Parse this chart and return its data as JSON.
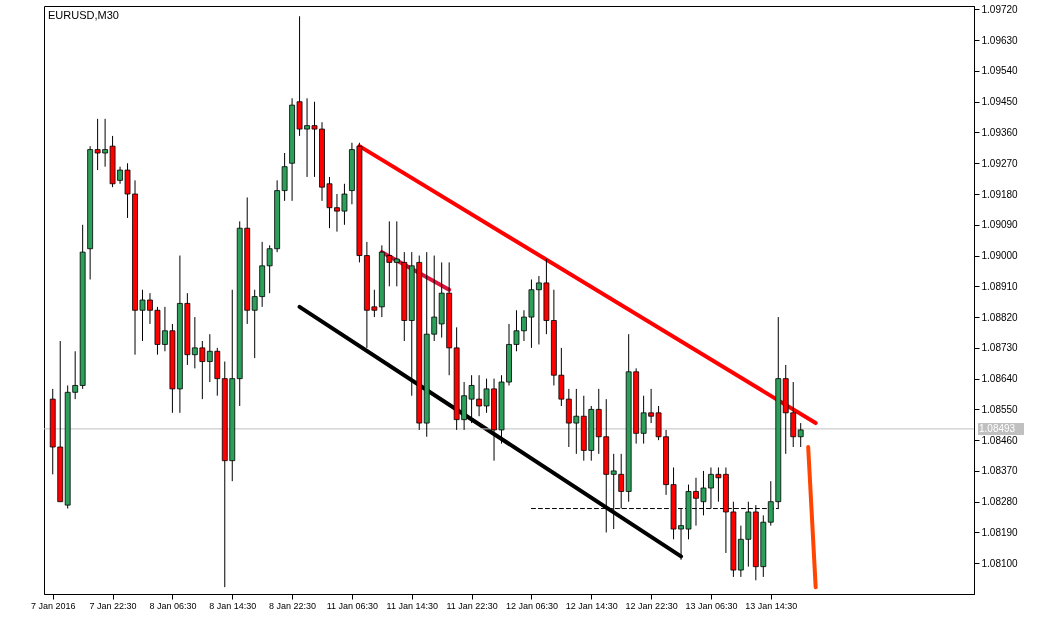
{
  "chart_data": {
    "type": "candlestick",
    "title": "EURUSD,M30",
    "categories": [
      "7 Jan 2016",
      null,
      null,
      null,
      null,
      null,
      null,
      null,
      "7 Jan 22:30",
      null,
      null,
      null,
      null,
      null,
      null,
      null,
      "8 Jan 06:30",
      null,
      null,
      null,
      null,
      null,
      null,
      null,
      "8 Jan 14:30",
      null,
      null,
      null,
      null,
      null,
      null,
      null,
      "8 Jan 22:30",
      null,
      null,
      null,
      null,
      null,
      null,
      null,
      "11 Jan 06:30",
      null,
      null,
      null,
      null,
      null,
      null,
      null,
      "11 Jan 14:30",
      null,
      null,
      null,
      null,
      null,
      null,
      null,
      "11 Jan 22:30",
      null,
      null,
      null,
      null,
      null,
      null,
      null,
      "12 Jan 06:30",
      null,
      null,
      null,
      null,
      null,
      null,
      null,
      "12 Jan 14:30",
      null,
      null,
      null,
      null,
      null,
      null,
      null,
      "12 Jan 22:30",
      null,
      null,
      null,
      null,
      null,
      null,
      null,
      "13 Jan 06:30",
      null,
      null,
      null,
      null,
      null,
      null,
      null,
      "13 Jan 14:30",
      null,
      null,
      null,
      null,
      null,
      null,
      null,
      null,
      null,
      null,
      null,
      null,
      null,
      null,
      null,
      null,
      null,
      null,
      null,
      null,
      null,
      null,
      null,
      null,
      null,
      null
    ],
    "ohlc": [
      [
        1.0858,
        1.0861,
        1.0836,
        1.0844
      ],
      [
        1.0844,
        1.0875,
        1.0828,
        1.0828
      ],
      [
        1.0827,
        1.0862,
        1.0826,
        1.086
      ],
      [
        1.086,
        1.0872,
        1.0858,
        1.0862
      ],
      [
        1.0862,
        1.0909,
        1.0861,
        1.0901
      ],
      [
        1.0902,
        1.0932,
        1.0893,
        1.0931
      ],
      [
        1.0931,
        1.094,
        1.0925,
        1.093
      ],
      [
        1.093,
        1.094,
        1.0926,
        1.0931
      ],
      [
        1.0932,
        1.0935,
        1.092,
        1.0921
      ],
      [
        1.0922,
        1.0926,
        1.0921,
        1.0925
      ],
      [
        1.0925,
        1.0927,
        1.0911,
        1.0918
      ],
      [
        1.0918,
        1.0922,
        1.0871,
        1.0884
      ],
      [
        1.0884,
        1.089,
        1.0875,
        1.0887
      ],
      [
        1.0887,
        1.0889,
        1.088,
        1.0884
      ],
      [
        1.0884,
        1.0885,
        1.0871,
        1.0874
      ],
      [
        1.0874,
        1.0885,
        1.0872,
        1.0878
      ],
      [
        1.0878,
        1.088,
        1.0854,
        1.0861
      ],
      [
        1.0861,
        1.09,
        1.0854,
        1.0886
      ],
      [
        1.0886,
        1.0889,
        1.0868,
        1.0871
      ],
      [
        1.0871,
        1.0882,
        1.0867,
        1.0873
      ],
      [
        1.0873,
        1.0875,
        1.0858,
        1.0869
      ],
      [
        1.0869,
        1.0877,
        1.0863,
        1.0872
      ],
      [
        1.0872,
        1.0873,
        1.0859,
        1.0864
      ],
      [
        1.0864,
        1.0869,
        1.0803,
        1.084
      ],
      [
        1.084,
        1.089,
        1.0834,
        1.0864
      ],
      [
        1.0864,
        1.091,
        1.0856,
        1.0908
      ],
      [
        1.0908,
        1.0917,
        1.088,
        1.0884
      ],
      [
        1.0884,
        1.089,
        1.087,
        1.0888
      ],
      [
        1.0888,
        1.0904,
        1.0885,
        1.0897
      ],
      [
        1.0897,
        1.0903,
        1.0889,
        1.0902
      ],
      [
        1.0902,
        1.0922,
        1.0901,
        1.0919
      ],
      [
        1.0919,
        1.093,
        1.0916,
        1.0926
      ],
      [
        1.0927,
        1.0946,
        1.0916,
        1.0944
      ],
      [
        1.0945,
        1.097,
        1.0935,
        1.0937
      ],
      [
        1.0937,
        1.0946,
        1.0923,
        1.0938
      ],
      [
        1.0938,
        1.0945,
        1.0923,
        1.0937
      ],
      [
        1.0937,
        1.0939,
        1.0916,
        1.092
      ],
      [
        1.0921,
        1.0923,
        1.0908,
        1.0914
      ],
      [
        1.0914,
        1.0918,
        1.0907,
        1.0913
      ],
      [
        1.0913,
        1.0921,
        1.0909,
        1.0918
      ],
      [
        1.0919,
        1.0933,
        1.0915,
        1.0931
      ],
      [
        1.0932,
        1.0933,
        1.0898,
        1.09
      ],
      [
        1.09,
        1.0904,
        1.0873,
        1.0884
      ],
      [
        1.0885,
        1.089,
        1.0882,
        1.0884
      ],
      [
        1.0885,
        1.0903,
        1.0882,
        1.0901
      ],
      [
        1.09,
        1.091,
        1.0891,
        1.0898
      ],
      [
        1.0898,
        1.091,
        1.0891,
        1.0899
      ],
      [
        1.0898,
        1.0901,
        1.0875,
        1.0881
      ],
      [
        1.0881,
        1.0901,
        1.0859,
        1.0897
      ],
      [
        1.0898,
        1.09,
        1.0849,
        1.0851
      ],
      [
        1.0851,
        1.0901,
        1.0847,
        1.0877
      ],
      [
        1.0877,
        1.09,
        1.0875,
        1.0882
      ],
      [
        1.088,
        1.0898,
        1.0876,
        1.0889
      ],
      [
        1.0889,
        1.0898,
        1.0865,
        1.0873
      ],
      [
        1.0873,
        1.0879,
        1.0849,
        1.0852
      ],
      [
        1.0852,
        1.0863,
        1.0849,
        1.0859
      ],
      [
        1.0858,
        1.0865,
        1.0851,
        1.0862
      ],
      [
        1.0858,
        1.0865,
        1.0853,
        1.0856
      ],
      [
        1.0856,
        1.0864,
        1.0854,
        1.0861
      ],
      [
        1.0861,
        1.0864,
        1.084,
        1.0849
      ],
      [
        1.0849,
        1.0865,
        1.0845,
        1.0863
      ],
      [
        1.0863,
        1.088,
        1.0862,
        1.0874
      ],
      [
        1.0874,
        1.0884,
        1.0872,
        1.0878
      ],
      [
        1.0878,
        1.0884,
        1.0875,
        1.0882
      ],
      [
        1.0882,
        1.0893,
        1.0873,
        1.089
      ],
      [
        1.089,
        1.0894,
        1.0874,
        1.0892
      ],
      [
        1.0892,
        1.0899,
        1.0877,
        1.0881
      ],
      [
        1.0881,
        1.089,
        1.0862,
        1.0865
      ],
      [
        1.0865,
        1.0873,
        1.0856,
        1.0858
      ],
      [
        1.0858,
        1.0861,
        1.0844,
        1.0851
      ],
      [
        1.0851,
        1.0861,
        1.0842,
        1.0853
      ],
      [
        1.0853,
        1.0859,
        1.084,
        1.0843
      ],
      [
        1.0843,
        1.0856,
        1.084,
        1.0855
      ],
      [
        1.0855,
        1.0861,
        1.0842,
        1.0847
      ],
      [
        1.0847,
        1.0858,
        1.0819,
        1.0836
      ],
      [
        1.0836,
        1.0842,
        1.082,
        1.0837
      ],
      [
        1.0836,
        1.0842,
        1.0826,
        1.0831
      ],
      [
        1.0831,
        1.0877,
        1.0828,
        1.0866
      ],
      [
        1.0866,
        1.0867,
        1.0845,
        1.0848
      ],
      [
        1.0848,
        1.0859,
        1.0845,
        1.0854
      ],
      [
        1.0854,
        1.0861,
        1.0851,
        1.0853
      ],
      [
        1.0854,
        1.0856,
        1.0846,
        1.0847
      ],
      [
        1.0847,
        1.0849,
        1.083,
        1.0833
      ],
      [
        1.0833,
        1.0838,
        1.0817,
        1.082
      ],
      [
        1.082,
        1.0826,
        1.0811,
        1.0821
      ],
      [
        1.082,
        1.0833,
        1.0817,
        1.0831
      ],
      [
        1.0831,
        1.0835,
        1.0821,
        1.0829
      ],
      [
        1.0828,
        1.0837,
        1.0824,
        1.0832
      ],
      [
        1.0832,
        1.0838,
        1.0826,
        1.0836
      ],
      [
        1.0836,
        1.0838,
        1.0828,
        1.0835
      ],
      [
        1.0836,
        1.0838,
        1.0813,
        1.0825
      ],
      [
        1.0825,
        1.0828,
        1.0806,
        1.0808
      ],
      [
        1.0808,
        1.0821,
        1.0806,
        1.0817
      ],
      [
        1.0817,
        1.0828,
        1.0809,
        1.0825
      ],
      [
        1.0825,
        1.0827,
        1.0805,
        1.0809
      ],
      [
        1.0809,
        1.0824,
        1.0806,
        1.0822
      ],
      [
        1.0822,
        1.0834,
        1.0821,
        1.0828
      ],
      [
        1.0828,
        1.0882,
        1.0826,
        1.0864
      ],
      [
        1.0864,
        1.0868,
        1.0842,
        1.0854
      ],
      [
        1.0854,
        1.0863,
        1.0844,
        1.0847
      ],
      [
        1.0847,
        1.0851,
        1.0844,
        1.0849
      ],
      null,
      null,
      null,
      null,
      null,
      null,
      null,
      null,
      null,
      null,
      null,
      null,
      null,
      null,
      null,
      null,
      null,
      null,
      null,
      null,
      null,
      null
    ],
    "colors": [
      "#ff0000",
      "#ff0000",
      "#2ca05a",
      "#2ca05a",
      "#2ca05a",
      "#2ca05a",
      "#ff0000",
      "#2ca05a",
      "#ff0000",
      "#2ca05a",
      "#ff0000",
      "#ff0000",
      "#2ca05a",
      "#ff0000",
      "#ff0000",
      "#2ca05a",
      "#ff0000",
      "#2ca05a",
      "#ff0000",
      "#2ca05a",
      "#ff0000",
      "#2ca05a",
      "#ff0000",
      "#ff0000",
      "#2ca05a",
      "#2ca05a",
      "#ff0000",
      "#2ca05a",
      "#2ca05a",
      "#2ca05a",
      "#2ca05a",
      "#2ca05a",
      "#2ca05a",
      "#ff0000",
      "#2ca05a",
      "#ff0000",
      "#ff0000",
      "#ff0000",
      "#ff0000",
      "#2ca05a",
      "#2ca05a",
      "#ff0000",
      "#ff0000",
      "#ff0000",
      "#2ca05a",
      "#ff0000",
      "#2ca05a",
      "#ff0000",
      "#2ca05a",
      "#ff0000",
      "#2ca05a",
      "#2ca05a",
      "#2ca05a",
      "#ff0000",
      "#ff0000",
      "#2ca05a",
      "#2ca05a",
      "#ff0000",
      "#2ca05a",
      "#ff0000",
      "#2ca05a",
      "#2ca05a",
      "#2ca05a",
      "#2ca05a",
      "#2ca05a",
      "#2ca05a",
      "#ff0000",
      "#ff0000",
      "#ff0000",
      "#ff0000",
      "#2ca05a",
      "#ff0000",
      "#2ca05a",
      "#ff0000",
      "#ff0000",
      "#2ca05a",
      "#ff0000",
      "#2ca05a",
      "#ff0000",
      "#2ca05a",
      "#ff0000",
      "#ff0000",
      "#ff0000",
      "#ff0000",
      "#2ca05a",
      "#2ca05a",
      "#ff0000",
      "#2ca05a",
      "#2ca05a",
      "#ff0000",
      "#ff0000",
      "#ff0000",
      "#2ca05a",
      "#2ca05a",
      "#ff0000",
      "#2ca05a",
      "#2ca05a",
      "#2ca05a",
      "#ff0000",
      "#ff0000",
      "#2ca05a",
      null,
      null,
      null,
      null,
      null,
      null,
      null,
      null,
      null,
      null,
      null,
      null,
      null,
      null,
      null,
      null,
      null,
      null,
      null,
      null,
      null,
      null
    ],
    "series": [
      {
        "type": "line",
        "color": "#ff0000",
        "values": [
          null,
          null,
          null,
          null,
          null,
          null,
          null,
          null,
          null,
          null,
          null,
          null,
          null,
          null,
          null,
          null,
          null,
          null,
          null,
          null,
          null,
          null,
          null,
          null,
          null,
          null,
          null,
          null,
          null,
          null,
          null,
          null,
          null,
          null,
          null,
          null,
          null,
          null,
          null,
          null,
          null,
          1.0932,
          null,
          null,
          null,
          null,
          null,
          null,
          null,
          null,
          null,
          null,
          null,
          null,
          null,
          null,
          null,
          null,
          null,
          null,
          null,
          null,
          null,
          null,
          null,
          null,
          null,
          null,
          null,
          null,
          null,
          null,
          null,
          null,
          null,
          null,
          null,
          null,
          null,
          null,
          null,
          null,
          null,
          null,
          null,
          null,
          null,
          null,
          null,
          null,
          null,
          null,
          null,
          null,
          null,
          null,
          null,
          null,
          null,
          null,
          null,
          null,
          1.0851,
          null,
          null,
          null,
          null,
          null,
          null,
          null,
          null,
          null,
          null,
          null,
          null,
          null,
          null,
          null,
          null,
          null,
          null,
          null,
          null
        ]
      },
      {
        "type": "line",
        "color": "#dc143c",
        "values": [
          null,
          null,
          null,
          null,
          null,
          null,
          null,
          null,
          null,
          null,
          null,
          null,
          null,
          null,
          null,
          null,
          null,
          null,
          null,
          null,
          null,
          null,
          null,
          null,
          null,
          null,
          null,
          null,
          null,
          null,
          null,
          null,
          null,
          null,
          null,
          null,
          null,
          null,
          null,
          null,
          null,
          null,
          null,
          null,
          1.0901,
          null,
          null,
          null,
          null,
          null,
          null,
          null,
          null,
          1.089,
          null,
          null,
          null,
          null,
          null,
          null,
          null,
          null,
          null,
          null,
          null,
          null,
          null,
          null,
          null,
          null,
          null,
          null,
          null,
          null,
          null,
          null,
          null,
          null,
          null,
          null,
          null,
          null,
          null,
          null,
          null,
          null,
          null,
          null,
          null,
          null,
          null,
          null,
          null,
          null,
          null,
          null,
          null,
          null,
          null,
          null,
          null,
          null,
          null,
          null,
          null,
          null,
          null,
          null,
          null,
          null,
          null,
          null,
          null,
          null,
          null,
          null,
          null,
          null,
          null,
          null,
          null,
          null,
          null
        ]
      },
      {
        "type": "line",
        "color": "#000000",
        "values": [
          null,
          null,
          null,
          null,
          null,
          null,
          null,
          null,
          null,
          null,
          null,
          null,
          null,
          null,
          null,
          null,
          null,
          null,
          null,
          null,
          null,
          null,
          null,
          null,
          null,
          null,
          null,
          null,
          null,
          null,
          null,
          null,
          null,
          1.0885,
          null,
          null,
          null,
          null,
          null,
          null,
          null,
          null,
          null,
          null,
          null,
          null,
          null,
          null,
          null,
          null,
          null,
          null,
          null,
          null,
          null,
          null,
          null,
          null,
          null,
          null,
          null,
          null,
          null,
          null,
          null,
          null,
          null,
          null,
          null,
          null,
          null,
          null,
          null,
          null,
          null,
          null,
          null,
          null,
          null,
          null,
          null,
          null,
          null,
          null,
          1.0812,
          null,
          null,
          null,
          null,
          null,
          null,
          null,
          null,
          null,
          null,
          null,
          null,
          null,
          null,
          null,
          null,
          null,
          null,
          null,
          null,
          null,
          null,
          null,
          null,
          null,
          null,
          null,
          null,
          null,
          null,
          null,
          null,
          null,
          null,
          null,
          null,
          null,
          null
        ]
      },
      {
        "type": "line",
        "color": "#000000",
        "line_style": "dashed",
        "values": [
          null,
          null,
          null,
          null,
          null,
          null,
          null,
          null,
          null,
          null,
          null,
          null,
          null,
          null,
          null,
          null,
          null,
          null,
          null,
          null,
          null,
          null,
          null,
          null,
          null,
          null,
          null,
          null,
          null,
          null,
          null,
          null,
          null,
          null,
          null,
          null,
          null,
          null,
          null,
          null,
          null,
          null,
          null,
          null,
          null,
          null,
          null,
          null,
          null,
          null,
          null,
          null,
          null,
          null,
          null,
          null,
          null,
          null,
          null,
          null,
          null,
          null,
          null,
          null,
          1.0826,
          null,
          null,
          null,
          null,
          null,
          null,
          null,
          null,
          null,
          null,
          null,
          null,
          null,
          null,
          null,
          null,
          null,
          null,
          null,
          null,
          null,
          null,
          null,
          null,
          null,
          null,
          null,
          null,
          null,
          null,
          null,
          null,
          1.0826,
          null,
          null,
          null,
          null,
          null,
          null,
          null,
          null,
          null,
          null,
          null,
          null,
          null,
          null,
          null,
          null,
          null,
          null,
          null,
          null,
          null,
          null,
          null,
          null,
          null
        ]
      },
      {
        "type": "line",
        "color": "#ff4500",
        "values": [
          null,
          null,
          null,
          null,
          null,
          null,
          null,
          null,
          null,
          null,
          null,
          null,
          null,
          null,
          null,
          null,
          null,
          null,
          null,
          null,
          null,
          null,
          null,
          null,
          null,
          null,
          null,
          null,
          null,
          null,
          null,
          null,
          null,
          null,
          null,
          null,
          null,
          null,
          null,
          null,
          null,
          null,
          null,
          null,
          null,
          null,
          null,
          null,
          null,
          null,
          null,
          null,
          null,
          null,
          null,
          null,
          null,
          null,
          null,
          null,
          null,
          null,
          null,
          null,
          null,
          null,
          null,
          null,
          null,
          null,
          null,
          null,
          null,
          null,
          null,
          null,
          null,
          null,
          null,
          null,
          null,
          null,
          null,
          null,
          null,
          null,
          null,
          null,
          null,
          null,
          null,
          null,
          null,
          null,
          null,
          null,
          null,
          null,
          null,
          null,
          null,
          1.0844,
          1.0803,
          null,
          null,
          null,
          null,
          null,
          null,
          null,
          null,
          null,
          null,
          null,
          null,
          null,
          null,
          null,
          null,
          null,
          null,
          null,
          null
        ]
      }
    ],
    "ref_lines": [
      {
        "axis": "y",
        "value": 1.08493,
        "label": "1.08493",
        "color": "#c0c0c0"
      }
    ],
    "ylim": [
      1.0801,
      1.0973
    ],
    "yticks": [
      {
        "value": 1.081,
        "label": "1.08100"
      },
      {
        "value": 1.0819,
        "label": "1.08190"
      },
      {
        "value": 1.0828,
        "label": "1.08280"
      },
      {
        "value": 1.0837,
        "label": "1.08370"
      },
      {
        "value": 1.0846,
        "label": "1.08460"
      },
      {
        "value": 1.0855,
        "label": "1.08550"
      },
      {
        "value": 1.0864,
        "label": "1.08640"
      },
      {
        "value": 1.0873,
        "label": "1.08730"
      },
      {
        "value": 1.0882,
        "label": "1.08820"
      },
      {
        "value": 1.0891,
        "label": "1.08910"
      },
      {
        "value": 1.09,
        "label": "1.09000"
      },
      {
        "value": 1.0909,
        "label": "1.09090"
      },
      {
        "value": 1.0918,
        "label": "1.09180"
      },
      {
        "value": 1.0927,
        "label": "1.09270"
      },
      {
        "value": 1.0936,
        "label": "1.09360"
      },
      {
        "value": 1.0945,
        "label": "1.09450"
      },
      {
        "value": 1.0954,
        "label": "1.09540"
      },
      {
        "value": 1.0963,
        "label": "1.09630"
      },
      {
        "value": 1.0972,
        "label": "1.09720"
      }
    ]
  }
}
